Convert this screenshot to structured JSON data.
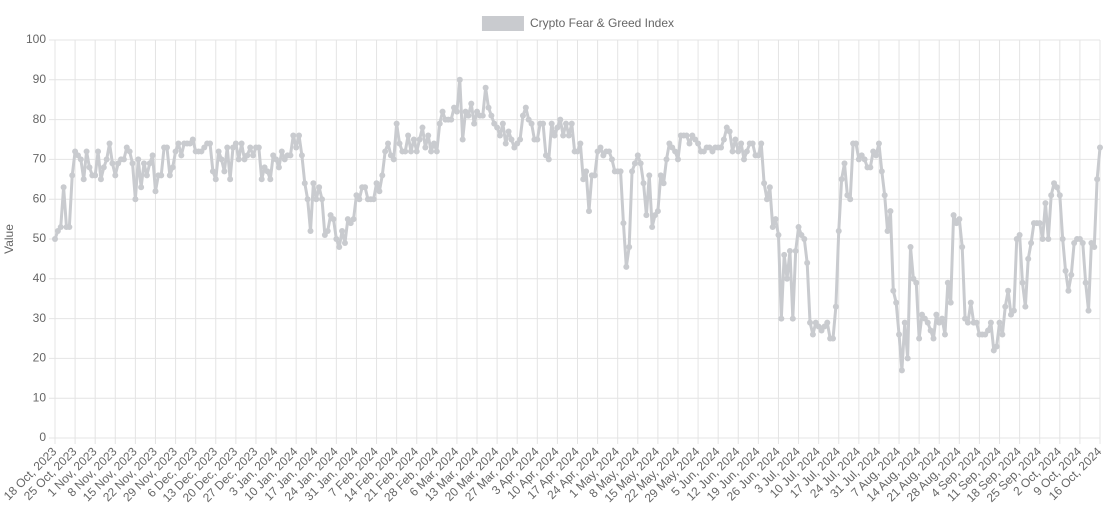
{
  "chart_data": {
    "type": "line",
    "y_label": "Value",
    "ylim": [
      0,
      100
    ],
    "yticks": [
      0,
      10,
      20,
      30,
      40,
      50,
      60,
      70,
      80,
      90,
      100
    ],
    "grid": true,
    "legend": "top",
    "categories": [
      "18 Oct, 2023",
      null,
      null,
      null,
      null,
      null,
      null,
      "25 Oct, 2023",
      null,
      null,
      null,
      null,
      null,
      null,
      "1 Nov, 2023",
      null,
      null,
      null,
      null,
      null,
      null,
      "8 Nov, 2023",
      null,
      null,
      null,
      null,
      null,
      null,
      "15 Nov, 2023",
      null,
      null,
      null,
      null,
      null,
      null,
      "22 Nov, 2023",
      null,
      null,
      null,
      null,
      null,
      null,
      "29 Nov, 2023",
      null,
      null,
      null,
      null,
      null,
      null,
      "6 Dec, 2023",
      null,
      null,
      null,
      null,
      null,
      null,
      "13 Dec, 2023",
      null,
      null,
      null,
      null,
      null,
      null,
      "20 Dec, 2023",
      null,
      null,
      null,
      null,
      null,
      null,
      "27 Dec, 2023",
      null,
      null,
      null,
      null,
      null,
      null,
      "3 Jan, 2024",
      null,
      null,
      null,
      null,
      null,
      null,
      "10 Jan, 2024",
      null,
      null,
      null,
      null,
      null,
      null,
      "17 Jan, 2024",
      null,
      null,
      null,
      null,
      null,
      null,
      "24 Jan, 2024",
      null,
      null,
      null,
      null,
      null,
      null,
      "31 Jan, 2024",
      null,
      null,
      null,
      null,
      null,
      null,
      "7 Feb, 2024",
      null,
      null,
      null,
      null,
      null,
      null,
      "14 Feb, 2024",
      null,
      null,
      null,
      null,
      null,
      null,
      "21 Feb, 2024",
      null,
      null,
      null,
      null,
      null,
      null,
      "28 Feb, 2024",
      null,
      null,
      null,
      null,
      null,
      null,
      "6 Mar, 2024",
      null,
      null,
      null,
      null,
      null,
      null,
      "13 Mar, 2024",
      null,
      null,
      null,
      null,
      null,
      null,
      "20 Mar, 2024",
      null,
      null,
      null,
      null,
      null,
      null,
      "27 Mar, 2024",
      null,
      null,
      null,
      null,
      null,
      null,
      "3 Apr, 2024",
      null,
      null,
      null,
      null,
      null,
      null,
      "10 Apr, 2024",
      null,
      null,
      null,
      null,
      null,
      null,
      "17 Apr, 2024",
      null,
      null,
      null,
      null,
      null,
      null,
      "24 Apr, 2024",
      null,
      null,
      null,
      null,
      null,
      null,
      "1 May, 2024",
      null,
      null,
      null,
      null,
      null,
      null,
      "8 May, 2024",
      null,
      null,
      null,
      null,
      null,
      null,
      "15 May, 2024",
      null,
      null,
      null,
      null,
      null,
      null,
      "22 May, 2024",
      null,
      null,
      null,
      null,
      null,
      null,
      "29 May, 2024",
      null,
      null,
      null,
      null,
      null,
      null,
      "5 Jun, 2024",
      null,
      null,
      null,
      null,
      null,
      null,
      "12 Jun, 2024",
      null,
      null,
      null,
      null,
      null,
      null,
      "19 Jun, 2024",
      null,
      null,
      null,
      null,
      null,
      null,
      "26 Jun, 2024",
      null,
      null,
      null,
      null,
      null,
      null,
      "3 Jul, 2024",
      null,
      null,
      null,
      null,
      null,
      null,
      "10 Jul, 2024",
      null,
      null,
      null,
      null,
      null,
      null,
      "17 Jul, 2024",
      null,
      null,
      null,
      null,
      null,
      null,
      "24 Jul, 2024",
      null,
      null,
      null,
      null,
      null,
      null,
      "31 Jul, 2024",
      null,
      null,
      null,
      null,
      null,
      null,
      "7 Aug, 2024",
      null,
      null,
      null,
      null,
      null,
      null,
      "14 Aug, 2024",
      null,
      null,
      null,
      null,
      null,
      null,
      "21 Aug, 2024",
      null,
      null,
      null,
      null,
      null,
      null,
      "28 Aug, 2024",
      null,
      null,
      null,
      null,
      null,
      null,
      "4 Sep, 2024",
      null,
      null,
      null,
      null,
      null,
      null,
      "11 Sep, 2024",
      null,
      null,
      null,
      null,
      null,
      null,
      "18 Sep, 2024",
      null,
      null,
      null,
      null,
      null,
      null,
      "25 Sep, 2024",
      null,
      null,
      null,
      null,
      null,
      null,
      "2 Oct, 2024",
      null,
      null,
      null,
      null,
      null,
      null,
      "9 Oct, 2024",
      null,
      null,
      null,
      null,
      null,
      null,
      "16 Oct, 2024"
    ],
    "series": [
      {
        "name": "Crypto Fear & Greed Index",
        "color": "#c9cbcf",
        "values": [
          50,
          52,
          53,
          63,
          53,
          53,
          66,
          72,
          71,
          70,
          65,
          72,
          68,
          66,
          66,
          72,
          65,
          68,
          70,
          74,
          69,
          66,
          69,
          70,
          70,
          73,
          72,
          69,
          60,
          70,
          63,
          69,
          66,
          69,
          71,
          62,
          66,
          66,
          73,
          73,
          66,
          68,
          72,
          74,
          71,
          74,
          74,
          74,
          75,
          72,
          72,
          72,
          73,
          74,
          74,
          67,
          65,
          72,
          70,
          67,
          73,
          65,
          73,
          74,
          70,
          74,
          70,
          71,
          73,
          71,
          73,
          73,
          65,
          68,
          67,
          65,
          71,
          70,
          68,
          72,
          70,
          71,
          71,
          76,
          73,
          76,
          71,
          64,
          60,
          52,
          64,
          60,
          63,
          60,
          51,
          52,
          56,
          55,
          50,
          48,
          52,
          49,
          55,
          54,
          55,
          61,
          60,
          63,
          63,
          60,
          60,
          60,
          64,
          62,
          66,
          72,
          74,
          71,
          70,
          79,
          74,
          72,
          72,
          76,
          72,
          75,
          72,
          75,
          78,
          73,
          76,
          72,
          74,
          72,
          79,
          82,
          80,
          80,
          80,
          83,
          82,
          90,
          75,
          82,
          81,
          84,
          79,
          82,
          81,
          81,
          88,
          83,
          81,
          79,
          78,
          76,
          79,
          74,
          77,
          75,
          73,
          74,
          75,
          81,
          83,
          80,
          79,
          75,
          75,
          79,
          79,
          71,
          70,
          79,
          76,
          78,
          80,
          76,
          79,
          76,
          79,
          72,
          72,
          74,
          65,
          67,
          57,
          66,
          66,
          72,
          73,
          71,
          72,
          72,
          70,
          67,
          67,
          67,
          54,
          43,
          48,
          67,
          69,
          71,
          69,
          64,
          56,
          66,
          53,
          56,
          57,
          66,
          64,
          70,
          74,
          73,
          72,
          70,
          76,
          76,
          76,
          74,
          76,
          75,
          74,
          72,
          72,
          73,
          73,
          72,
          73,
          73,
          73,
          75,
          78,
          77,
          72,
          75,
          72,
          74,
          70,
          72,
          74,
          74,
          71,
          71,
          74,
          64,
          60,
          63,
          53,
          55,
          51,
          30,
          46,
          40,
          47,
          30,
          47,
          53,
          51,
          50,
          44,
          29,
          26,
          29,
          28,
          27,
          28,
          29,
          25,
          25,
          33,
          52,
          65,
          69,
          61,
          60,
          74,
          74,
          70,
          71,
          70,
          68,
          68,
          72,
          71,
          74,
          67,
          61,
          52,
          57,
          37,
          34,
          26,
          17,
          29,
          20,
          48,
          40,
          39,
          25,
          31,
          30,
          29,
          27,
          25,
          31,
          29,
          30,
          26,
          39,
          34,
          56,
          54,
          55,
          48,
          30,
          29,
          34,
          29,
          29,
          26,
          26,
          26,
          27,
          29,
          22,
          23,
          29,
          26,
          33,
          37,
          31,
          32,
          50,
          51,
          39,
          33,
          45,
          49,
          54,
          54,
          54,
          50,
          59,
          50,
          61,
          64,
          63,
          61,
          50,
          42,
          37,
          41,
          49,
          50,
          50,
          49,
          39,
          32,
          49,
          48,
          65,
          73
        ]
      }
    ]
  }
}
